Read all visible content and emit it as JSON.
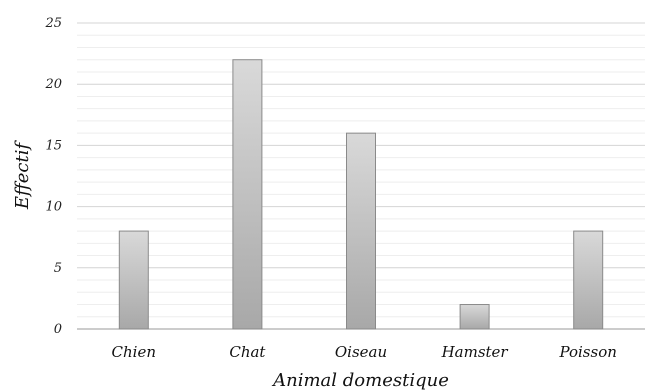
{
  "chart_data": {
    "type": "bar",
    "categories": [
      "Chien",
      "Chat",
      "Oiseau",
      "Hamster",
      "Poisson"
    ],
    "values": [
      8,
      22,
      16,
      2,
      8
    ],
    "xlabel": "Animal domestique",
    "ylabel": "Effectif",
    "ylim": [
      0,
      25
    ],
    "yticks": [
      "0",
      "5",
      "10",
      "15",
      "20",
      "25"
    ],
    "grid": true,
    "minor_grid": true,
    "legend": "none",
    "colors": {
      "bar_top": "#d9d9d9",
      "bar_bottom": "#a8a8a8",
      "bar_stroke": "#8a8a8a",
      "grid_major": "#d4d4d4",
      "grid_minor": "#eeeeee",
      "axis": "#999999"
    }
  }
}
